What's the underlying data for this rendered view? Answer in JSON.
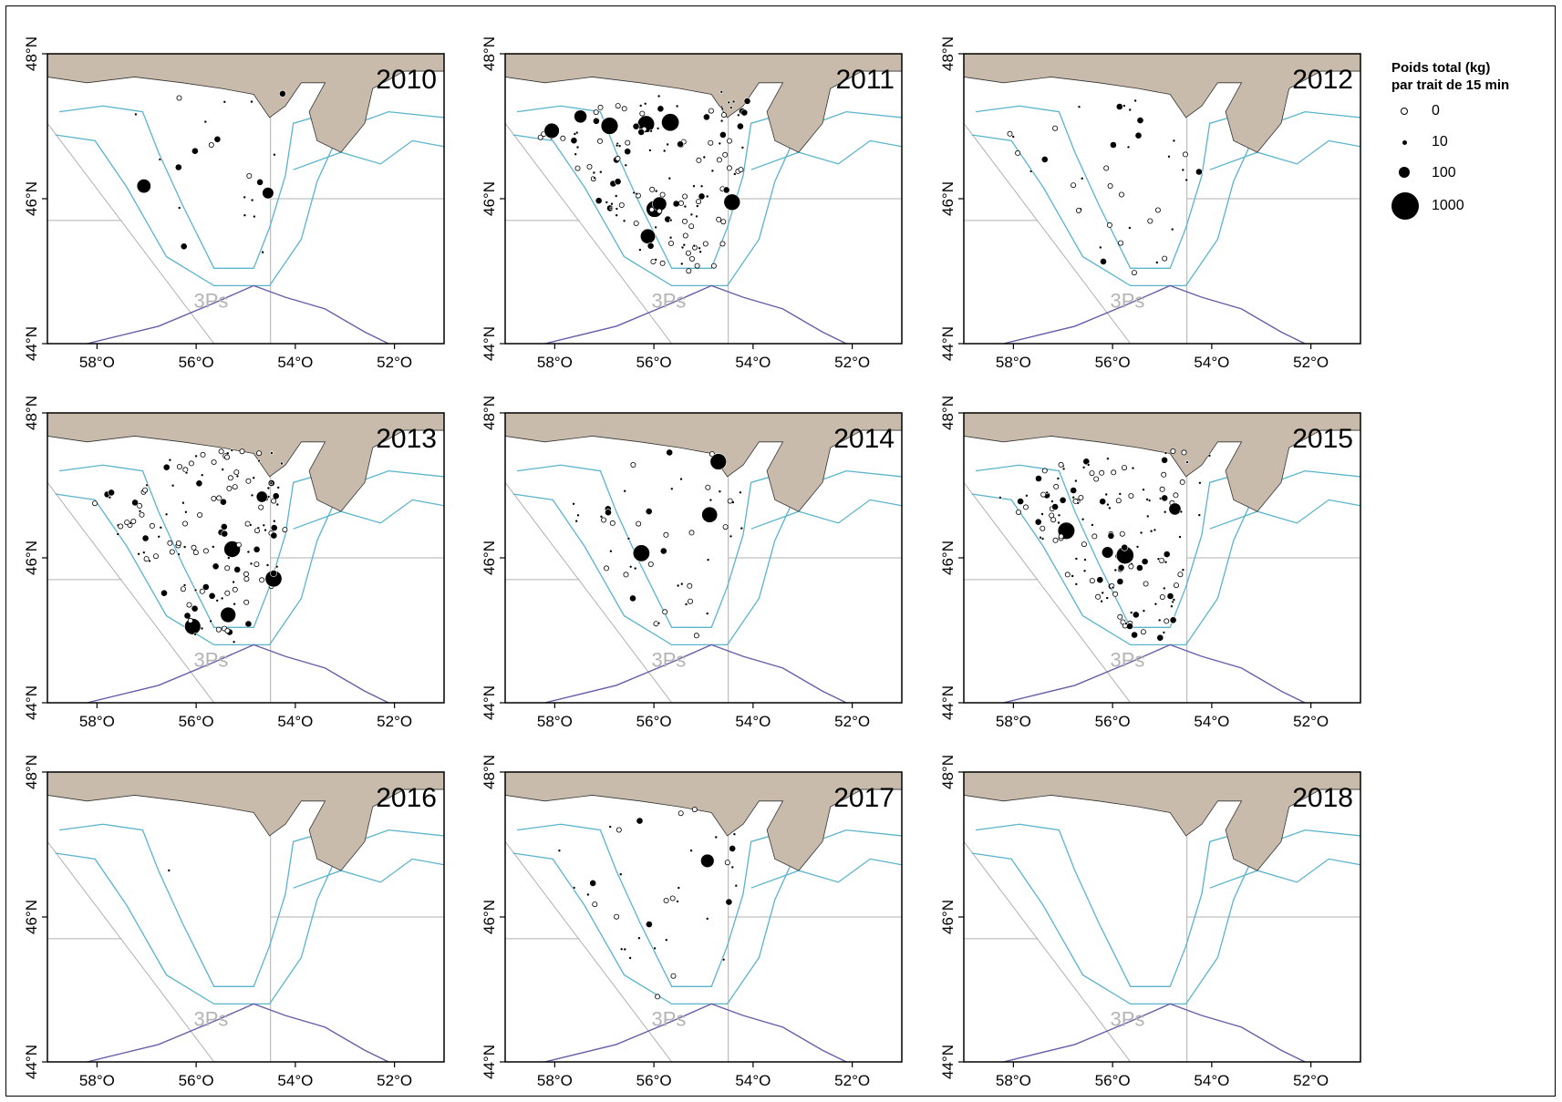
{
  "legend": {
    "title_line1": "Poids total (kg)",
    "title_line2": "par trait de 15 min",
    "items": [
      {
        "label": "0",
        "kg": 0
      },
      {
        "label": "10",
        "kg": 10
      },
      {
        "label": "100",
        "kg": 100
      },
      {
        "label": "1000",
        "kg": 1000
      }
    ]
  },
  "axes": {
    "lon_ticks": [
      "58°O",
      "56°O",
      "54°O",
      "52°O"
    ],
    "lat_ticks": [
      "44°N",
      "46°N",
      "48°N"
    ],
    "lon_range": [
      -59,
      -51
    ],
    "lat_range": [
      44,
      48
    ]
  },
  "division_label": "3Ps",
  "colors": {
    "land": "#c8bbab",
    "depth_contour": "#5ab4cc",
    "shelf_edge": "#6a5ca8",
    "grid": "#b0b0b0",
    "division_text": "#b4b4b4",
    "catch_symbol": "#000000"
  },
  "panels": [
    {
      "year": "2010"
    },
    {
      "year": "2011"
    },
    {
      "year": "2012"
    },
    {
      "year": "2013"
    },
    {
      "year": "2014"
    },
    {
      "year": "2015"
    },
    {
      "year": "2016"
    },
    {
      "year": "2017"
    },
    {
      "year": "2018"
    }
  ]
}
